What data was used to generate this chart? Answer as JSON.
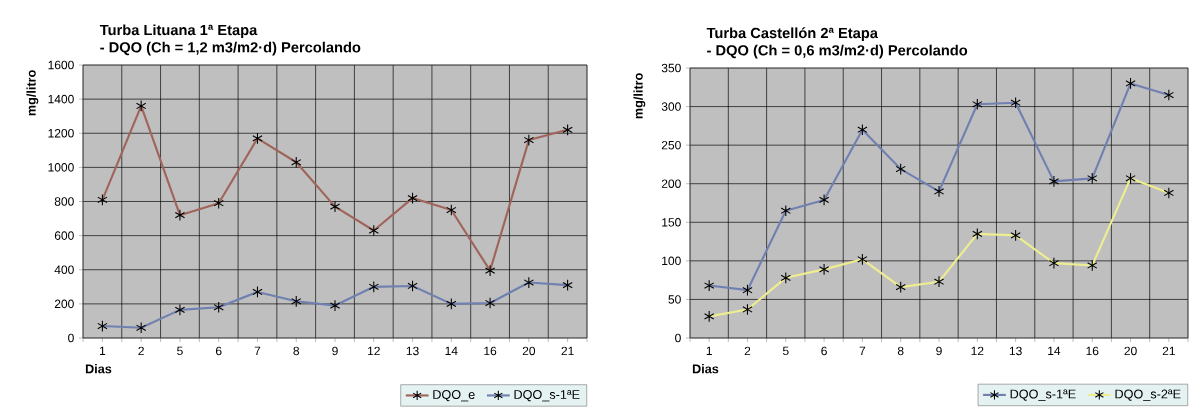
{
  "chart_data": [
    {
      "type": "line",
      "title": "Turba Lituana 1ª Etapa",
      "subtitle": "- DQO (Ch = 1,2 m3/m2·d) Percolando",
      "xlabel": "Dias",
      "ylabel": "mg/litro",
      "categories": [
        "1",
        "2",
        "5",
        "6",
        "7",
        "8",
        "9",
        "12",
        "13",
        "14",
        "16",
        "20",
        "21"
      ],
      "series": [
        {
          "name": "DQO_e",
          "color": "#a0645a",
          "values": [
            810,
            1360,
            720,
            790,
            1170,
            1030,
            770,
            630,
            820,
            750,
            395,
            1160,
            1220
          ]
        },
        {
          "name": "DQO_s-1ªE",
          "color": "#7080b0",
          "values": [
            70,
            60,
            165,
            180,
            270,
            215,
            190,
            300,
            305,
            200,
            205,
            325,
            310
          ]
        }
      ],
      "ylim": [
        0,
        1600
      ],
      "yticks": [
        0,
        200,
        400,
        600,
        800,
        1000,
        1200,
        1400,
        1600
      ],
      "grid": true,
      "legend": "bottom",
      "marker": "cross",
      "line_style": "solid"
    },
    {
      "type": "line",
      "title": "Turba Castellón 2ª Etapa",
      "subtitle": "- DQO (Ch = 0,6 m3/m2·d) Percolando",
      "xlabel": "Dias",
      "ylabel": "mg/litro",
      "categories": [
        "1",
        "2",
        "5",
        "6",
        "7",
        "8",
        "9",
        "12",
        "13",
        "14",
        "16",
        "20",
        "21"
      ],
      "series": [
        {
          "name": "DQO_s-1ªE",
          "color": "#7080b0",
          "values": [
            68,
            62,
            165,
            179,
            270,
            219,
            190,
            303,
            305,
            203,
            207,
            330,
            315
          ]
        },
        {
          "name": "DQO_s-2ªE",
          "color": "#eeee90",
          "values": [
            28,
            37,
            78,
            89,
            102,
            66,
            73,
            135,
            133,
            97,
            94,
            207,
            188
          ]
        }
      ],
      "ylim": [
        0,
        350
      ],
      "yticks": [
        0,
        50,
        100,
        150,
        200,
        250,
        300,
        350
      ],
      "grid": true,
      "legend": "bottom",
      "marker": "cross",
      "line_style": "solid"
    }
  ]
}
